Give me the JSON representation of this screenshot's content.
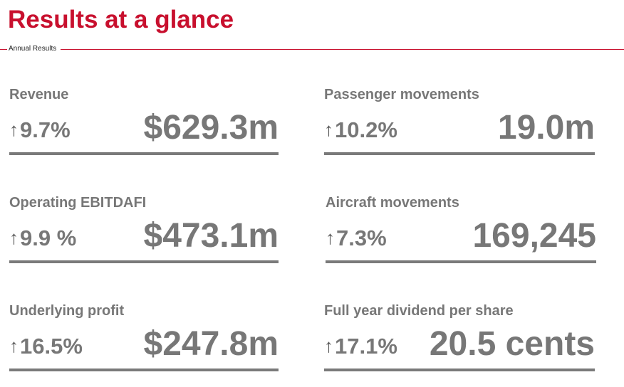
{
  "header": {
    "title": "Results at a glance",
    "subtitle": "Annual Results"
  },
  "colors": {
    "title": "#c8102e",
    "text": "#777777",
    "rule": "#7a7a7a"
  },
  "metrics": [
    {
      "label": "Revenue",
      "arrow": "↑",
      "change": "9.7%",
      "value": "$629.3m"
    },
    {
      "label": "Passenger movements",
      "arrow": "↑",
      "change": "10.2%",
      "value": "19.0m"
    },
    {
      "label": "Operating EBITDAFI",
      "arrow": "↑",
      "change": "9.9 %",
      "value": "$473.1m"
    },
    {
      "label": "Aircraft movements",
      "arrow": "↑",
      "change": "7.3%",
      "value": "169,245"
    },
    {
      "label": "Underlying profit",
      "arrow": "↑",
      "change": "16.5%",
      "value": "$247.8m"
    },
    {
      "label": "Full year dividend per share",
      "arrow": "↑",
      "change": "17.1%",
      "value": "20.5 cents"
    }
  ]
}
